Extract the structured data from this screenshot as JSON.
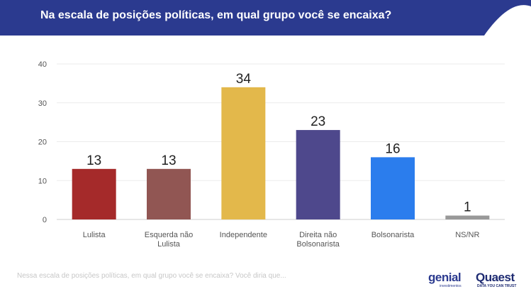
{
  "header": {
    "title": "Na escala de posições políticas, em qual grupo você se encaixa?"
  },
  "chart_data": {
    "type": "bar",
    "title": "",
    "xlabel": "",
    "ylabel": "",
    "ylim": [
      0,
      40
    ],
    "yticks": [
      "0",
      "10",
      "20",
      "30",
      "40"
    ],
    "grid": true,
    "categories": [
      [
        "Lulista"
      ],
      [
        "Esquerda não",
        "Lulista"
      ],
      [
        "Independente"
      ],
      [
        "Direita não",
        "Bolsonarista"
      ],
      [
        "Bolsonarista"
      ],
      [
        "NS/NR"
      ]
    ],
    "values": [
      13,
      13,
      34,
      23,
      16,
      1
    ],
    "colors": [
      "#a52a2a",
      "#915653",
      "#e3b84b",
      "#4e488c",
      "#2b7ded",
      "#999999"
    ]
  },
  "footer": {
    "caption": "Nessa escala de posições políticas, em qual grupo você se encaixa? Você diria que..."
  },
  "logos": {
    "genial": {
      "word": "genial",
      "sub": "investimentos"
    },
    "quaest": {
      "word": "Quaest",
      "sub": "DATA YOU CAN TRUST"
    }
  },
  "colors": {
    "header_bg": "#2b3a8f",
    "grid": "#ebebeb",
    "axis_text": "#555555"
  }
}
